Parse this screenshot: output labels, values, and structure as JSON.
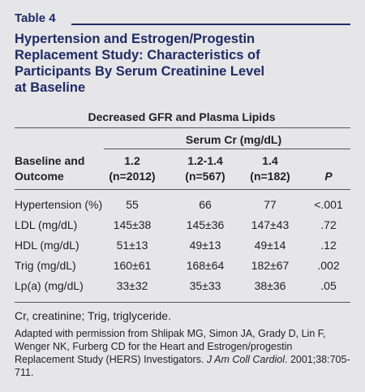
{
  "label": "Table 4",
  "title_lines": [
    "Hypertension and Estrogen/Progestin",
    "Replacement Study: Characteristics of",
    "Participants By Serum Creatinine Level",
    "at Baseline"
  ],
  "table": {
    "caption": "Decreased GFR and Plasma Lipids",
    "group_header": "Serum Cr (mg/dL)",
    "row_header": [
      "Baseline and",
      "Outcome"
    ],
    "columns": [
      [
        "1.2",
        "(n=2012)"
      ],
      [
        "1.2-1.4",
        "(n=567)"
      ],
      [
        "1.4",
        "(n=182)"
      ],
      [
        "P"
      ]
    ],
    "rows": [
      [
        "Hypertension (%)",
        "55",
        "66",
        "77",
        "<.001"
      ],
      [
        "LDL (mg/dL)",
        "145±38",
        "145±36",
        "147±43",
        ".72"
      ],
      [
        "HDL (mg/dL)",
        "51±13",
        "49±13",
        "49±14",
        ".12"
      ],
      [
        "Trig (mg/dL)",
        "160±61",
        "168±64",
        "182±67",
        ".002"
      ],
      [
        "Lp(a) (mg/dL)",
        "33±32",
        "35±33",
        "38±36",
        ".05"
      ]
    ]
  },
  "footnotes": {
    "abbreviations": "Cr, creatinine; Trig, triglyceride.",
    "source": [
      "Adapted with permission from Shlipak MG, Simon JA, Grady D, Lin F, Wenger NK, Furberg CD for the Heart and Estrogen/progestin Replacement Study (HERS) Investigators. ",
      "J Am Coll Cardiol",
      ". 2001;38:705-711."
    ]
  }
}
